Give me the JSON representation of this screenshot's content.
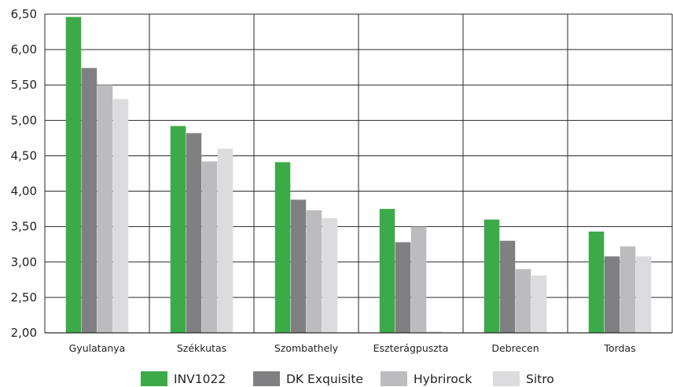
{
  "chart_data": {
    "type": "bar",
    "title": "",
    "xlabel": "",
    "ylabel": "",
    "ylim": [
      2.0,
      6.5
    ],
    "yticks": [
      "2,00",
      "2,50",
      "3,00",
      "3,50",
      "4,00",
      "4,50",
      "5,00",
      "5,50",
      "6,00",
      "6,50"
    ],
    "ytick_values": [
      2.0,
      2.5,
      3.0,
      3.5,
      4.0,
      4.5,
      5.0,
      5.5,
      6.0,
      6.5
    ],
    "categories": [
      "Gyulatanya",
      "Székkutas",
      "Szombathely",
      "Eszterágpuszta",
      "Debrecen",
      "Tordas"
    ],
    "series": [
      {
        "name": "INV1022",
        "color": "#3daa49",
        "values": [
          6.46,
          4.92,
          4.41,
          3.75,
          3.6,
          3.43
        ]
      },
      {
        "name": "DK Exquisite",
        "color": "#808083",
        "values": [
          5.74,
          4.82,
          3.88,
          3.28,
          3.3,
          3.08
        ]
      },
      {
        "name": "Hybrirock",
        "color": "#bcbcbe",
        "values": [
          5.5,
          4.42,
          3.73,
          3.5,
          2.9,
          3.22
        ]
      },
      {
        "name": "Sitro",
        "color": "#dcdcde",
        "values": [
          5.3,
          4.6,
          3.62,
          2.02,
          2.81,
          3.08
        ]
      }
    ],
    "grid": true,
    "legend_position": "bottom"
  }
}
